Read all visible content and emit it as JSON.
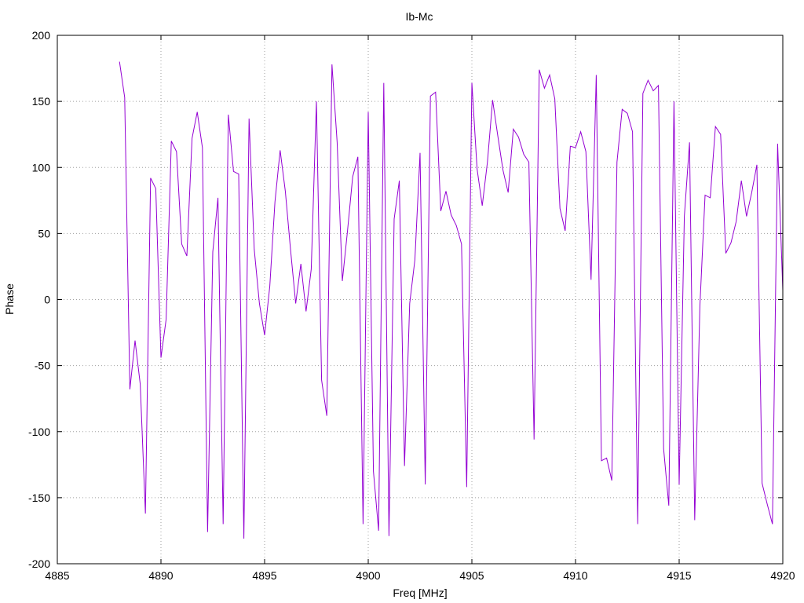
{
  "chart_data": {
    "type": "line",
    "title": "Ib-Mc",
    "xlabel": "Freq [MHz]",
    "ylabel": "Phase",
    "xlim": [
      4885,
      4920
    ],
    "ylim": [
      -200,
      200
    ],
    "xticks": [
      4885,
      4890,
      4895,
      4900,
      4905,
      4910,
      4915,
      4920
    ],
    "yticks": [
      -200,
      -150,
      -100,
      -50,
      0,
      50,
      100,
      150,
      200
    ],
    "grid": true,
    "series": [
      {
        "color": "#9400d3",
        "x": [
          4888.0,
          4888.25,
          4888.5,
          4888.75,
          4889.0,
          4889.25,
          4889.5,
          4889.75,
          4890.0,
          4890.25,
          4890.5,
          4890.75,
          4891.0,
          4891.25,
          4891.5,
          4891.75,
          4892.0,
          4892.25,
          4892.5,
          4892.75,
          4893.0,
          4893.25,
          4893.5,
          4893.75,
          4894.0,
          4894.25,
          4894.5,
          4894.75,
          4895.0,
          4895.25,
          4895.5,
          4895.75,
          4896.0,
          4896.25,
          4896.5,
          4896.75,
          4897.0,
          4897.25,
          4897.5,
          4897.75,
          4898.0,
          4898.25,
          4898.5,
          4898.75,
          4899.0,
          4899.25,
          4899.5,
          4899.75,
          4900.0,
          4900.25,
          4900.5,
          4900.75,
          4901.0,
          4901.25,
          4901.5,
          4901.75,
          4902.0,
          4902.25,
          4902.5,
          4902.75,
          4903.0,
          4903.25,
          4903.5,
          4903.75,
          4904.0,
          4904.25,
          4904.5,
          4904.75,
          4905.0,
          4905.25,
          4905.5,
          4905.75,
          4906.0,
          4906.25,
          4906.5,
          4906.75,
          4907.0,
          4907.25,
          4907.5,
          4907.75,
          4908.0,
          4908.25,
          4908.5,
          4908.75,
          4909.0,
          4909.25,
          4909.5,
          4909.75,
          4910.0,
          4910.25,
          4910.5,
          4910.75,
          4911.0,
          4911.25,
          4911.5,
          4911.75,
          4912.0,
          4912.25,
          4912.5,
          4912.75,
          4913.0,
          4913.25,
          4913.5,
          4913.75,
          4914.0,
          4914.25,
          4914.5,
          4914.75,
          4915.0,
          4915.25,
          4915.5,
          4915.75,
          4916.0,
          4916.25,
          4916.5,
          4916.75,
          4917.0,
          4917.25,
          4917.5,
          4917.75,
          4918.0,
          4918.25,
          4918.5,
          4918.75,
          4919.0,
          4919.25,
          4919.5,
          4919.75,
          4920.0
        ],
        "values": [
          180,
          153,
          -68,
          -31,
          -64,
          -162,
          92,
          84,
          -44,
          -15,
          120,
          112,
          42,
          33,
          122,
          142,
          115,
          -176,
          36,
          77,
          -170,
          140,
          97,
          95,
          -181,
          137,
          38,
          -3,
          -27,
          10,
          74,
          113,
          82,
          38,
          -3,
          27,
          -9,
          23,
          150,
          -61,
          -88,
          178,
          119,
          14,
          52,
          93,
          108,
          -170,
          142,
          -130,
          -175,
          164,
          -179,
          61,
          90,
          -126,
          -3,
          30,
          111,
          -140,
          154,
          157,
          67,
          82,
          64,
          56,
          42,
          -142,
          164,
          99,
          71,
          104,
          151,
          124,
          98,
          81,
          129,
          123,
          110,
          104,
          -106,
          174,
          160,
          170,
          152,
          69,
          52,
          116,
          115,
          127,
          112,
          15,
          170,
          -122,
          -120,
          -137,
          104,
          144,
          141,
          127,
          -170,
          156,
          166,
          158,
          162,
          -113,
          -156,
          150,
          -140,
          63,
          119,
          -167,
          -5,
          79,
          77,
          131,
          125,
          35,
          43,
          59,
          90,
          63,
          81,
          102,
          -139,
          -155,
          -170,
          118,
          7
        ]
      }
    ]
  }
}
